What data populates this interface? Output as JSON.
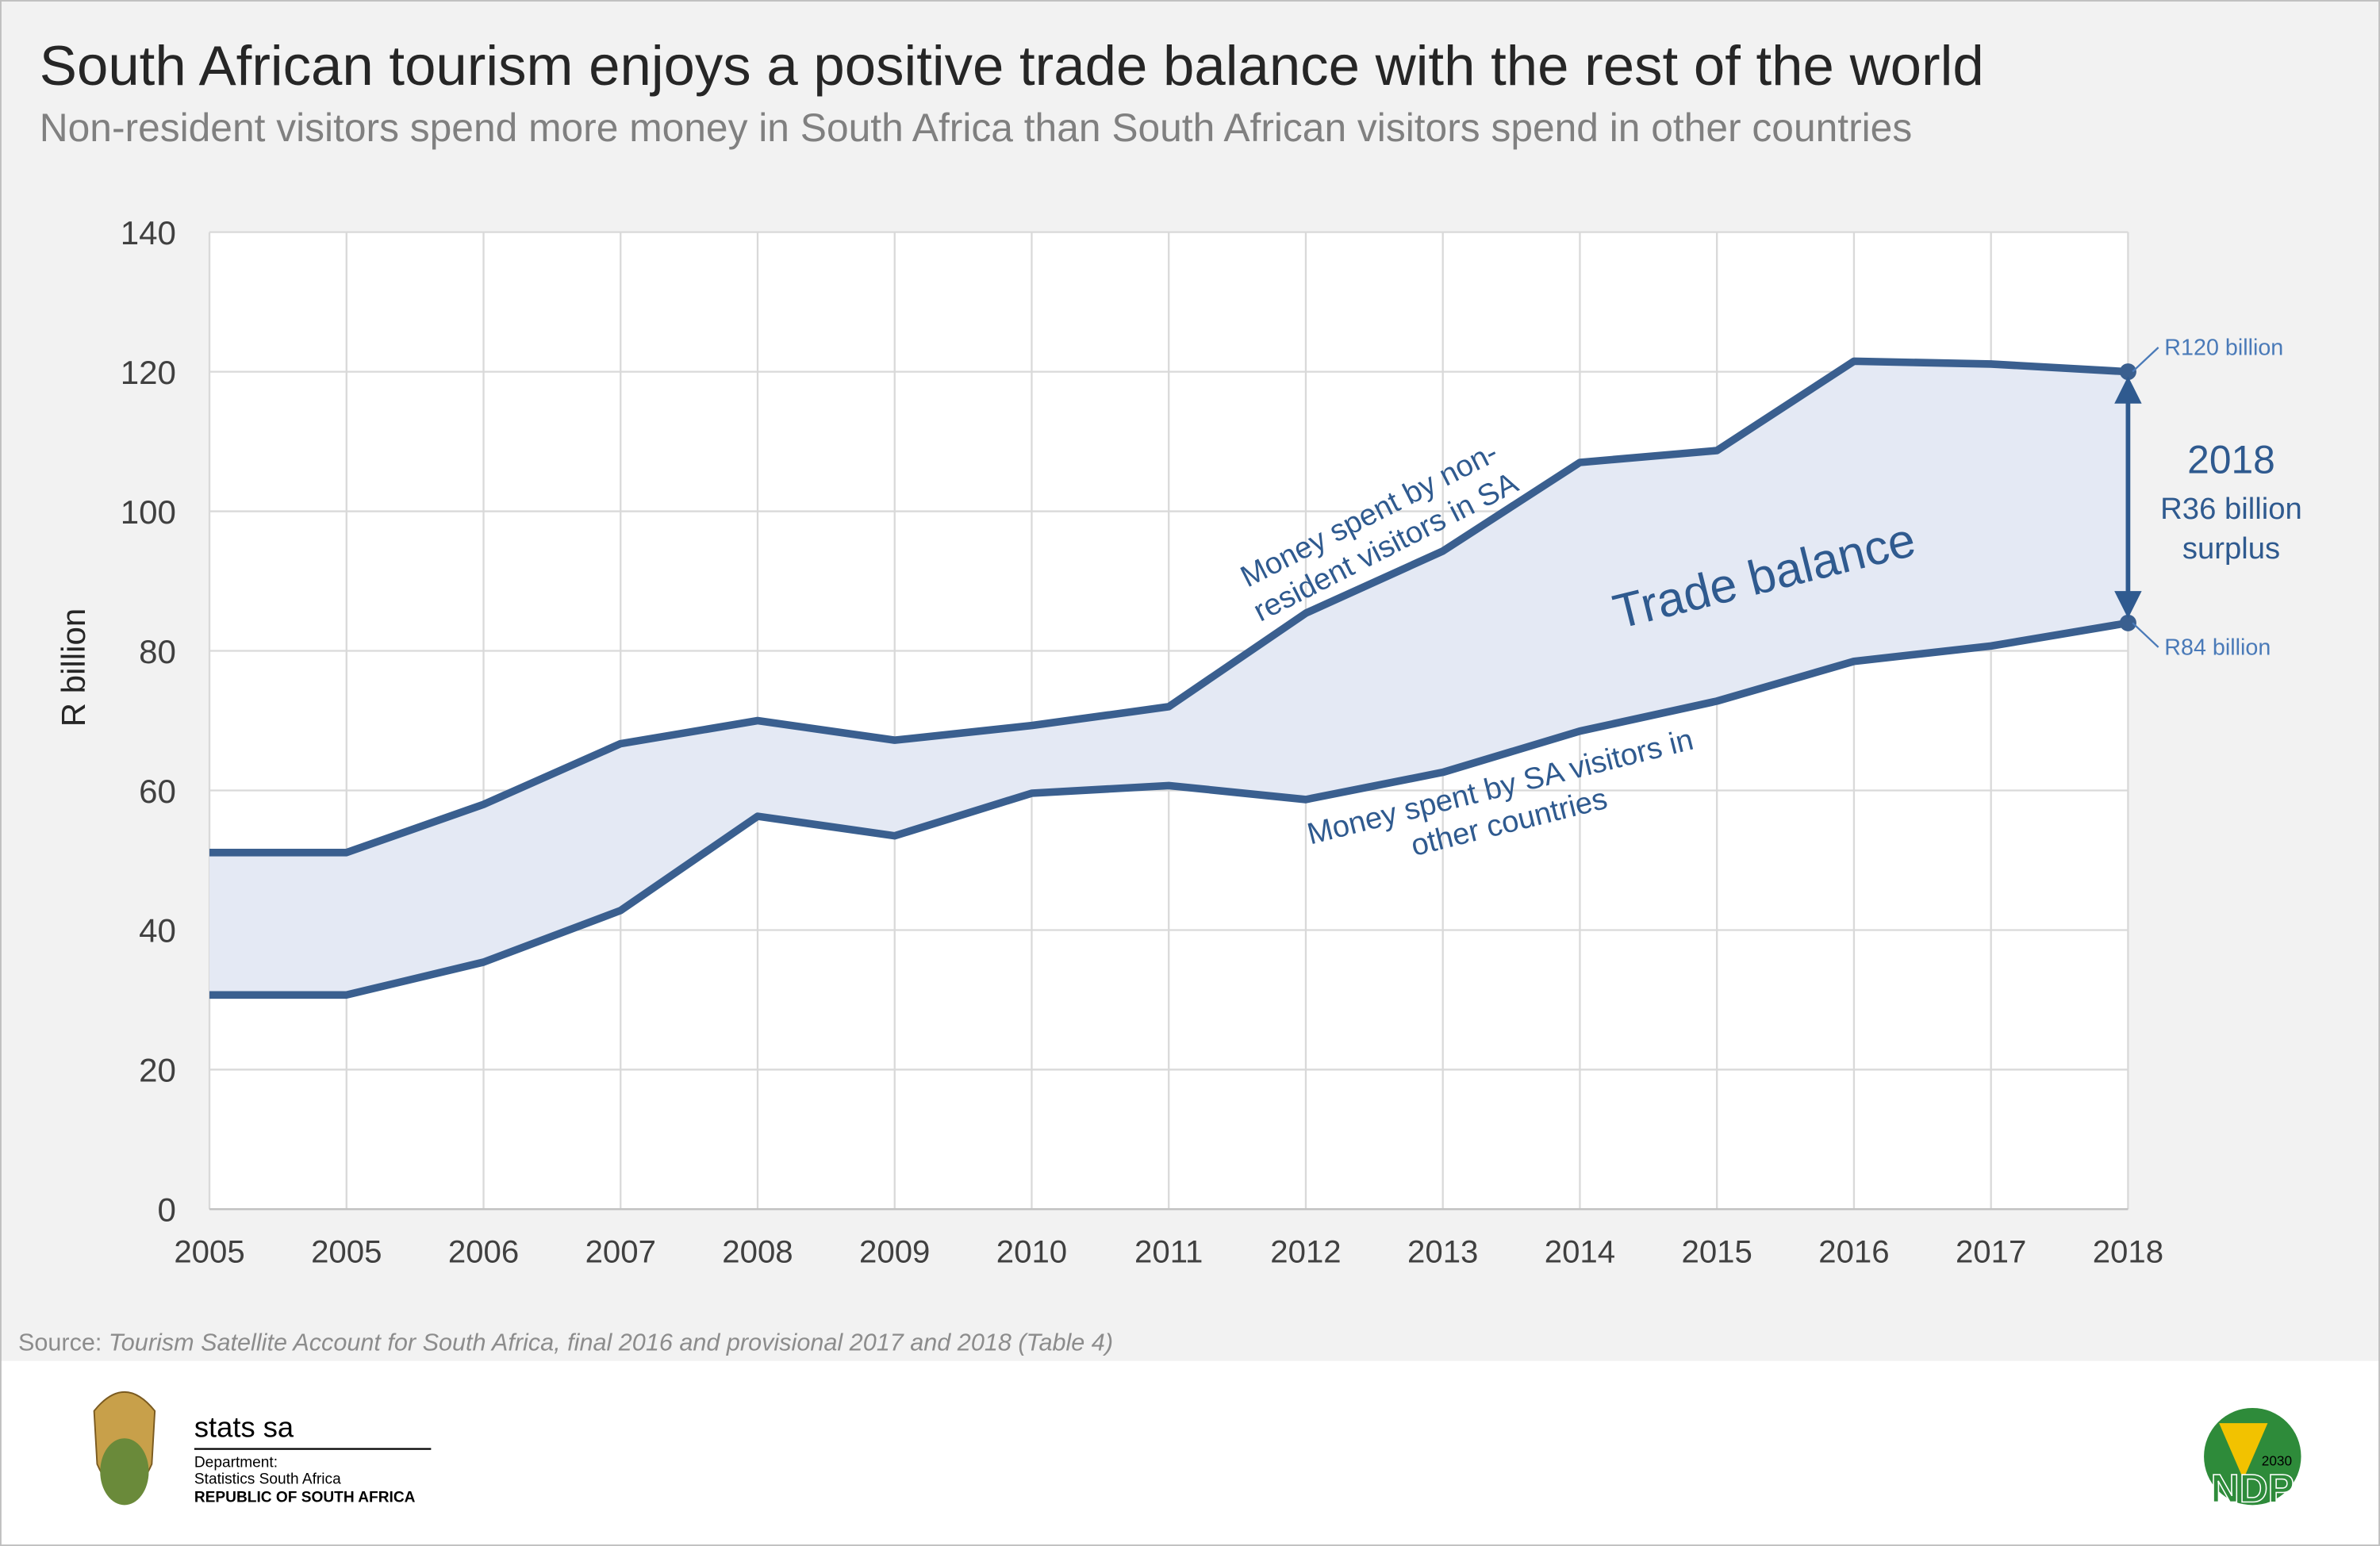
{
  "chart_data": {
    "type": "line",
    "title": "South African tourism enjoys a positive trade balance with the rest of the world",
    "subtitle": "Non-resident visitors spend more money in South Africa than South African visitors spend in other countries",
    "y_label": "R billion",
    "categories": [
      "2005",
      "2005",
      "2006",
      "2007",
      "2008",
      "2009",
      "2010",
      "2011",
      "2012",
      "2013",
      "2014",
      "2015",
      "2016",
      "2017",
      "2018"
    ],
    "series": [
      {
        "label_lines": [
          "Money spent by non-",
          "resident visitors in SA"
        ],
        "color": "#3a5f8f",
        "values": [
          51.1,
          51.1,
          58,
          66.7,
          70,
          67.2,
          69.3,
          72,
          85.4,
          94.3,
          107,
          108.7,
          121.5,
          121.1,
          120
        ],
        "end_label": "R120 billion"
      },
      {
        "label_lines": [
          "Money spent by SA visitors in",
          "other countries"
        ],
        "color": "#3a5f8f",
        "values": [
          30.7,
          30.7,
          35.4,
          42.8,
          56.3,
          53.5,
          59.6,
          60.7,
          58.7,
          62.6,
          68.5,
          72.8,
          78.5,
          80.7,
          84
        ],
        "end_label": "R84 billion"
      }
    ],
    "area_label": "Trade balance",
    "area_color": "#e4e9f4",
    "callout": [
      "2018",
      "R36 billion",
      "surplus"
    ],
    "ylim": [
      0,
      140
    ],
    "yticks": [
      0,
      20,
      40,
      60,
      80,
      100,
      120,
      140
    ],
    "grid": true,
    "source_prefix": "Source: ",
    "source": "Tourism Satellite Account for South Africa, final 2016 and provisional 2017 and 2018 (Table 4)"
  },
  "footer": {
    "brand": "stats sa",
    "department": "Department:",
    "org": "Statistics South Africa",
    "country": "REPUBLIC OF SOUTH AFRICA",
    "ndp_year": "2030",
    "ndp": "NDP"
  }
}
